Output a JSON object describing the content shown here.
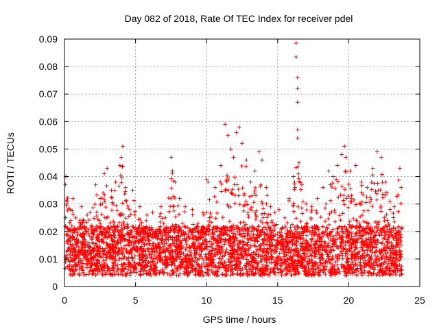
{
  "chart_data": {
    "type": "scatter",
    "title": "Day 082 of 2018, Rate Of TEC Index for receiver pdel",
    "xlabel": "GPS time / hours",
    "ylabel": "ROTI / TECUs",
    "xlim": [
      0,
      25
    ],
    "ylim": [
      0,
      0.09
    ],
    "xticks": [
      "0",
      "5",
      "10",
      "15",
      "20",
      "25"
    ],
    "yticks": [
      "0",
      "0.01",
      "0.02",
      "0.03",
      "0.04",
      "0.05",
      "0.06",
      "0.07",
      "0.08",
      "0.09"
    ],
    "grid": true,
    "marker": "+",
    "colors": {
      "points": "#ff0000",
      "grid": "#a0a0a0",
      "axes": "#000000"
    },
    "series": [
      {
        "points": [
          [
            0.1,
            0.04
          ],
          [
            0.2,
            0.031
          ],
          [
            0.4,
            0.028
          ],
          [
            0.6,
            0.032
          ],
          [
            0.8,
            0.025
          ],
          [
            1.2,
            0.029
          ],
          [
            1.6,
            0.026
          ],
          [
            1.8,
            0.027
          ],
          [
            2.2,
            0.037
          ],
          [
            2.5,
            0.032
          ],
          [
            2.8,
            0.041
          ],
          [
            3.0,
            0.043
          ],
          [
            3.3,
            0.035
          ],
          [
            3.6,
            0.038
          ],
          [
            3.9,
            0.044
          ],
          [
            4.0,
            0.047
          ],
          [
            4.1,
            0.051
          ],
          [
            4.3,
            0.036
          ],
          [
            4.6,
            0.028
          ],
          [
            4.8,
            0.035
          ],
          [
            5.3,
            0.029
          ],
          [
            5.8,
            0.026
          ],
          [
            6.2,
            0.027
          ],
          [
            6.8,
            0.029
          ],
          [
            7.1,
            0.025
          ],
          [
            7.5,
            0.047
          ],
          [
            7.6,
            0.042
          ],
          [
            7.8,
            0.038
          ],
          [
            8.1,
            0.032
          ],
          [
            8.5,
            0.029
          ],
          [
            9.0,
            0.028
          ],
          [
            9.4,
            0.023
          ],
          [
            9.8,
            0.026
          ],
          [
            10.0,
            0.039
          ],
          [
            10.1,
            0.038
          ],
          [
            10.6,
            0.036
          ],
          [
            11.0,
            0.044
          ],
          [
            11.3,
            0.059
          ],
          [
            11.5,
            0.055
          ],
          [
            11.7,
            0.05
          ],
          [
            11.9,
            0.047
          ],
          [
            12.1,
            0.056
          ],
          [
            12.3,
            0.058
          ],
          [
            12.5,
            0.052
          ],
          [
            12.8,
            0.046
          ],
          [
            13.1,
            0.038
          ],
          [
            13.4,
            0.042
          ],
          [
            13.7,
            0.049
          ],
          [
            13.9,
            0.046
          ],
          [
            14.2,
            0.036
          ],
          [
            14.5,
            0.029
          ],
          [
            14.8,
            0.027
          ],
          [
            15.1,
            0.028
          ],
          [
            15.5,
            0.025
          ],
          [
            15.8,
            0.032
          ],
          [
            16.1,
            0.04
          ],
          [
            16.3,
            0.0885
          ],
          [
            16.3,
            0.0835
          ],
          [
            16.4,
            0.076
          ],
          [
            16.4,
            0.072
          ],
          [
            16.4,
            0.067
          ],
          [
            16.4,
            0.057
          ],
          [
            16.4,
            0.054
          ],
          [
            16.5,
            0.045
          ],
          [
            16.7,
            0.037
          ],
          [
            17.0,
            0.03
          ],
          [
            17.4,
            0.029
          ],
          [
            17.8,
            0.032
          ],
          [
            18.2,
            0.036
          ],
          [
            18.6,
            0.042
          ],
          [
            18.9,
            0.04
          ],
          [
            19.2,
            0.044
          ],
          [
            19.5,
            0.048
          ],
          [
            19.7,
            0.051
          ],
          [
            19.8,
            0.047
          ],
          [
            20.1,
            0.042
          ],
          [
            20.5,
            0.044
          ],
          [
            20.9,
            0.038
          ],
          [
            21.3,
            0.036
          ],
          [
            21.7,
            0.043
          ],
          [
            22.0,
            0.049
          ],
          [
            22.3,
            0.047
          ],
          [
            22.6,
            0.038
          ],
          [
            22.9,
            0.031
          ],
          [
            23.2,
            0.029
          ],
          [
            23.6,
            0.043
          ],
          [
            23.7,
            0.036
          ]
        ]
      }
    ]
  }
}
